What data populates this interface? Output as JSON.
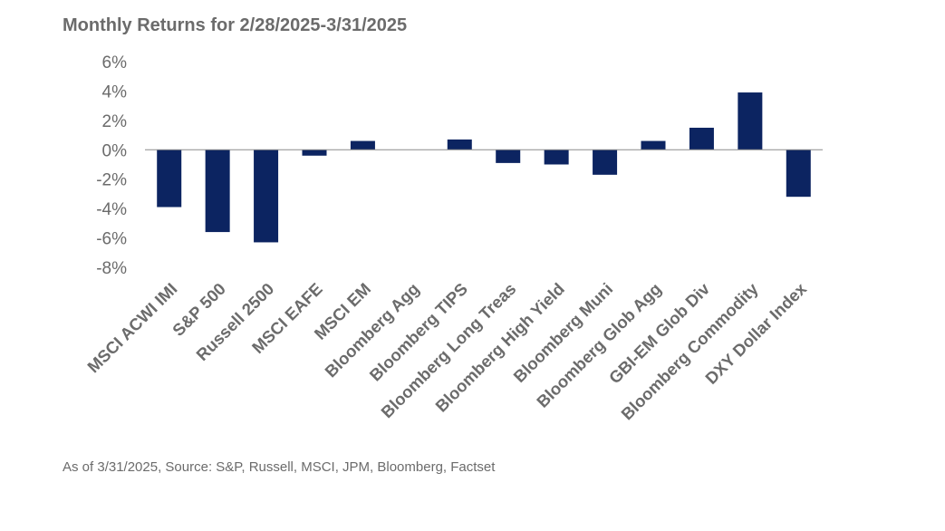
{
  "chart_data": {
    "type": "bar",
    "title": "Monthly Returns for 2/28/2025-3/31/2025",
    "source": "As of 3/31/2025, Source: S&P, Russell, MSCI, JPM, Bloomberg, Factset",
    "xlabel": "",
    "ylabel": "",
    "ylim": [
      -8,
      6
    ],
    "yticks": [
      6,
      4,
      2,
      0,
      -2,
      -4,
      -6,
      -8
    ],
    "ytick_labels": [
      "6%",
      "4%",
      "2%",
      "0%",
      "-2%",
      "-4%",
      "-6%",
      "-8%"
    ],
    "grid": false,
    "bar_color": "#0c2461",
    "categories": [
      "MSCI ACWI IMI",
      "S&P 500",
      "Russell 2500",
      "MSCI EAFE",
      "MSCI EM",
      "Bloomberg Agg",
      "Bloomberg TIPS",
      "Bloomberg Long Treas",
      "Bloomberg High Yield",
      "Bloomberg Muni",
      "Bloomberg Glob Agg",
      "GBI-EM Glob Div",
      "Bloomberg Commodity",
      "DXY Dollar Index"
    ],
    "values": [
      -3.9,
      -5.6,
      -6.3,
      -0.4,
      0.6,
      0.0,
      0.7,
      -0.9,
      -1.0,
      -1.7,
      0.6,
      1.5,
      3.9,
      -3.2
    ]
  }
}
